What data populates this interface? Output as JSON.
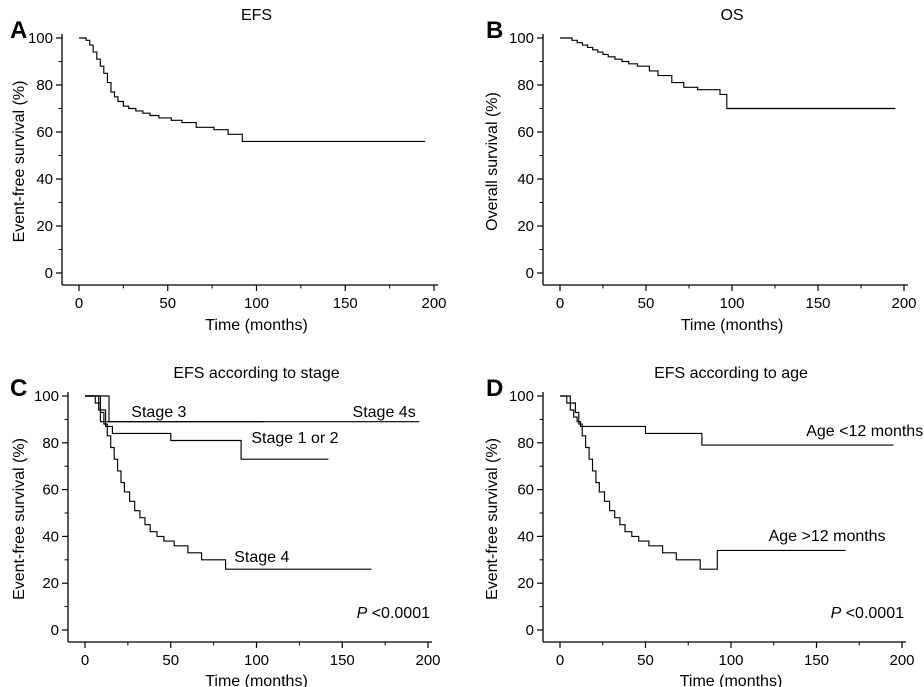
{
  "chart_data": [
    {
      "panel": "A",
      "type": "line",
      "title": "EFS",
      "xlabel": "Time (months)",
      "ylabel": "Event-free survival (%)",
      "xlim": [
        0,
        200
      ],
      "ylim": [
        0,
        100
      ],
      "xticks": [
        0,
        50,
        100,
        150,
        200
      ],
      "yticks": [
        0,
        20,
        40,
        60,
        80,
        100
      ],
      "series": [
        {
          "name": "",
          "x": [
            0,
            4,
            6,
            8,
            10,
            12,
            14,
            16,
            18,
            20,
            22,
            25,
            28,
            32,
            36,
            40,
            45,
            52,
            58,
            66,
            76,
            84,
            92,
            195
          ],
          "y": [
            100,
            99,
            97,
            94,
            91,
            88,
            85,
            81,
            77,
            75,
            73,
            71,
            70,
            69,
            68,
            67,
            66,
            65,
            64,
            62,
            61,
            59,
            56,
            56
          ]
        }
      ],
      "annotations": []
    },
    {
      "panel": "B",
      "type": "line",
      "title": "OS",
      "xlabel": "Time (months)",
      "ylabel": "Overall survival (%)",
      "xlim": [
        0,
        200
      ],
      "ylim": [
        0,
        100
      ],
      "xticks": [
        0,
        50,
        100,
        150,
        200
      ],
      "yticks": [
        0,
        20,
        40,
        60,
        80,
        100
      ],
      "series": [
        {
          "name": "",
          "x": [
            0,
            7,
            10,
            13,
            16,
            19,
            22,
            25,
            28,
            32,
            36,
            40,
            45,
            52,
            57,
            65,
            72,
            80,
            93,
            97,
            195
          ],
          "y": [
            100,
            99,
            98,
            97,
            96,
            95,
            94,
            93,
            92,
            91,
            90,
            89,
            88,
            86,
            84,
            81,
            79,
            78,
            76,
            70,
            70
          ]
        }
      ],
      "annotations": []
    },
    {
      "panel": "C",
      "type": "line",
      "title": "EFS according to stage",
      "xlabel": "Time (months)",
      "ylabel": "Event-free survival (%)",
      "xlim": [
        0,
        200
      ],
      "ylim": [
        0,
        100
      ],
      "xticks": [
        0,
        50,
        100,
        150,
        200
      ],
      "yticks": [
        0,
        20,
        40,
        60,
        80,
        100
      ],
      "series": [
        {
          "name": "",
          "x": [
            0,
            14,
            104
          ],
          "y": [
            100,
            89,
            89
          ]
        },
        {
          "name": "",
          "x": [
            0,
            9,
            195
          ],
          "y": [
            100,
            89,
            89
          ]
        },
        {
          "name": "",
          "x": [
            0,
            8,
            12,
            16,
            50,
            91,
            142
          ],
          "y": [
            100,
            94,
            87,
            84,
            81,
            73,
            73
          ]
        },
        {
          "name": "",
          "x": [
            0,
            6,
            9,
            11,
            13,
            15,
            17,
            19,
            21,
            23,
            26,
            29,
            32,
            35,
            38,
            42,
            46,
            52,
            60,
            68,
            82,
            167
          ],
          "y": [
            100,
            97,
            93,
            88,
            83,
            78,
            73,
            68,
            63,
            59,
            55,
            51,
            48,
            45,
            42,
            40,
            38,
            36,
            33,
            30,
            26,
            26
          ]
        }
      ],
      "annotations": [
        {
          "text": "Stage 3",
          "x": 27,
          "y": 91
        },
        {
          "text": "Stage 4s",
          "x": 156,
          "y": 91
        },
        {
          "text": "Stage 1 or 2",
          "x": 97,
          "y": 80
        },
        {
          "text": "Stage 4",
          "x": 87,
          "y": 29
        }
      ],
      "pvalue": {
        "label": "P",
        "text": " <0.0001"
      }
    },
    {
      "panel": "D",
      "type": "line",
      "title": "EFS according to age",
      "xlabel": "Time (months)",
      "ylabel": "Event-free survival (%)",
      "xlim": [
        0,
        200
      ],
      "ylim": [
        0,
        100
      ],
      "xticks": [
        0,
        50,
        100,
        150,
        200
      ],
      "yticks": [
        0,
        20,
        40,
        60,
        80,
        100
      ],
      "series": [
        {
          "name": "",
          "x": [
            0,
            4,
            6,
            8,
            10,
            12,
            50,
            83,
            195
          ],
          "y": [
            100,
            97,
            94,
            91,
            89,
            87,
            84,
            79,
            79
          ]
        },
        {
          "name": "",
          "x": [
            0,
            6,
            9,
            11,
            13,
            15,
            17,
            19,
            21,
            23,
            26,
            29,
            32,
            35,
            38,
            42,
            46,
            52,
            60,
            68,
            82,
            92,
            167
          ],
          "y": [
            100,
            97,
            93,
            88,
            83,
            78,
            73,
            68,
            63,
            59,
            55,
            51,
            48,
            45,
            42,
            40,
            38,
            36,
            33,
            30,
            26,
            34,
            34
          ]
        }
      ],
      "annotations": [
        {
          "text": "Age <12 months",
          "x": 144,
          "y": 83
        },
        {
          "text": "Age >12 months",
          "x": 122,
          "y": 38
        }
      ],
      "pvalue": {
        "label": "P",
        "text": " <0.0001"
      }
    }
  ]
}
